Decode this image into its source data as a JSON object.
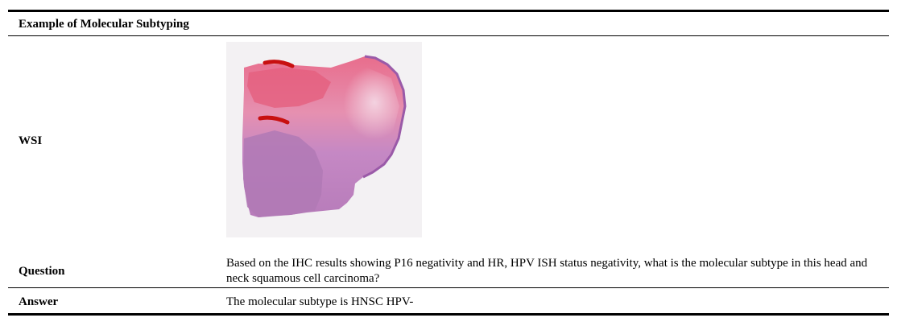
{
  "header": {
    "title": "Example of Molecular Subtyping"
  },
  "rows": {
    "wsi": {
      "label": "WSI",
      "image_icon": "whole-slide-histology-image"
    },
    "question": {
      "label": "Question",
      "text": "Based on the IHC results showing P16 negativity and HR, HPV ISH status negativity, what is the molecular subtype in this head and neck squamous cell carcinoma?"
    },
    "answer": {
      "label": "Answer",
      "text": "The molecular subtype is HNSC HPV-"
    }
  },
  "colors": {
    "rule": "#000000",
    "tissue_pink": "#e8a0c0",
    "tissue_purple": "#b57bb8",
    "tissue_red": "#e05070",
    "ink_red": "#c81010"
  }
}
